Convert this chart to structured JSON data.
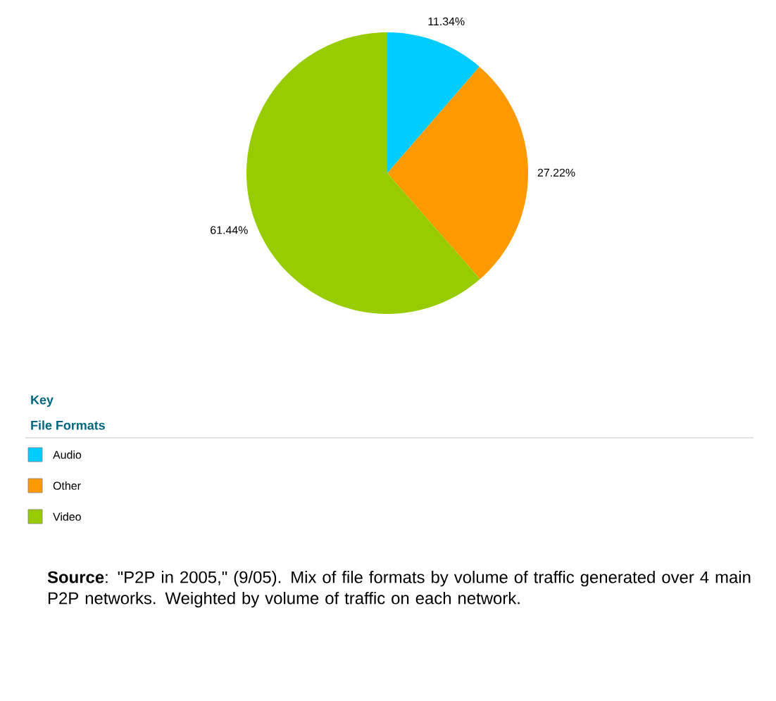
{
  "chart_data": {
    "type": "pie",
    "categories": [
      "Audio",
      "Other",
      "Video"
    ],
    "values": [
      11.34,
      27.22,
      61.44
    ],
    "colors": [
      "#00ccff",
      "#ff9900",
      "#99cc00"
    ],
    "value_labels": [
      "11.34%",
      "27.22%",
      "61.44%"
    ],
    "legend": "bottom",
    "legend_title": "File Formats",
    "annotations": [
      "Key",
      "**Source**: \"P2P in 2005,\" (9/05). Mix of file formats by volume of traffic generated over 4 main P2P networks. Weighted by volume of traffic on each network."
    ]
  }
}
